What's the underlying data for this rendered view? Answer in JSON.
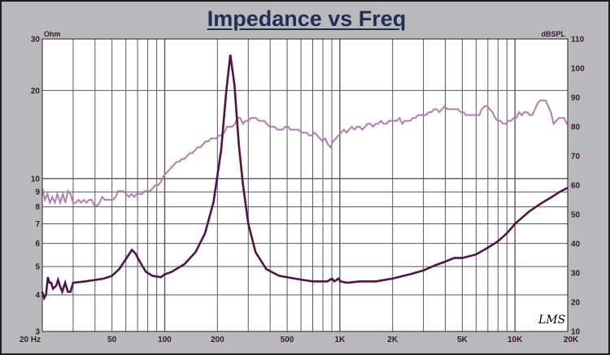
{
  "chart_data": {
    "type": "line",
    "title": "Impedance vs Freq",
    "left_unit": "Ohm",
    "right_unit": "dBSPL",
    "logo_text": "LMS",
    "x_scale": "log",
    "xlim": [
      20,
      20000
    ],
    "left_ylim": [
      3,
      30
    ],
    "left_scale": "log",
    "right_ylim": [
      10,
      110
    ],
    "grid": true,
    "x_ticks": [
      {
        "value": 20,
        "label": "20  Hz"
      },
      {
        "value": 50,
        "label": "50"
      },
      {
        "value": 100,
        "label": "100"
      },
      {
        "value": 200,
        "label": "200"
      },
      {
        "value": 500,
        "label": "500"
      },
      {
        "value": 1000,
        "label": "1K"
      },
      {
        "value": 2000,
        "label": "2K"
      },
      {
        "value": 5000,
        "label": "5K"
      },
      {
        "value": 10000,
        "label": "10K"
      },
      {
        "value": 20000,
        "label": "20K"
      }
    ],
    "left_ticks": [
      {
        "value": 3,
        "label": "3"
      },
      {
        "value": 4,
        "label": "4"
      },
      {
        "value": 5,
        "label": "5"
      },
      {
        "value": 6,
        "label": "6"
      },
      {
        "value": 7,
        "label": "7"
      },
      {
        "value": 8,
        "label": "8"
      },
      {
        "value": 9,
        "label": "9"
      },
      {
        "value": 10,
        "label": "10"
      },
      {
        "value": 20,
        "label": "20"
      },
      {
        "value": 30,
        "label": "30"
      }
    ],
    "right_ticks": [
      10,
      20,
      30,
      40,
      50,
      60,
      70,
      80,
      90,
      100,
      110
    ],
    "colors": {
      "background": "#b9b9bc",
      "grid": "#58585f",
      "impedance": "#52124a",
      "spl": "#b47cb3",
      "tick_text": "#3a1535",
      "title": "#1f2f55"
    },
    "series": [
      {
        "axis": "left",
        "color": "#52124a",
        "points": [
          [
            20,
            4.1
          ],
          [
            20.5,
            3.9
          ],
          [
            21,
            4.0
          ],
          [
            21.5,
            4.6
          ],
          [
            22,
            4.4
          ],
          [
            22.5,
            4.4
          ],
          [
            23,
            4.2
          ],
          [
            24,
            4.3
          ],
          [
            24.6,
            4.5
          ],
          [
            25.2,
            4.3
          ],
          [
            26,
            4.1
          ],
          [
            27,
            4.4
          ],
          [
            28,
            4.1
          ],
          [
            29,
            4.1
          ],
          [
            30,
            4.4
          ],
          [
            35,
            4.45
          ],
          [
            40,
            4.5
          ],
          [
            45,
            4.55
          ],
          [
            50,
            4.65
          ],
          [
            55,
            4.9
          ],
          [
            60,
            5.3
          ],
          [
            65,
            5.7
          ],
          [
            68,
            5.55
          ],
          [
            72,
            5.2
          ],
          [
            78,
            4.8
          ],
          [
            85,
            4.65
          ],
          [
            95,
            4.6
          ],
          [
            100,
            4.7
          ],
          [
            110,
            4.8
          ],
          [
            130,
            5.1
          ],
          [
            150,
            5.6
          ],
          [
            170,
            6.5
          ],
          [
            190,
            8.3
          ],
          [
            210,
            12.5
          ],
          [
            225,
            20
          ],
          [
            237,
            26.5
          ],
          [
            250,
            21
          ],
          [
            265,
            13
          ],
          [
            280,
            9.5
          ],
          [
            300,
            7.0
          ],
          [
            330,
            5.6
          ],
          [
            380,
            4.9
          ],
          [
            450,
            4.65
          ],
          [
            550,
            4.55
          ],
          [
            700,
            4.45
          ],
          [
            850,
            4.45
          ],
          [
            900,
            4.55
          ],
          [
            930,
            4.45
          ],
          [
            980,
            4.55
          ],
          [
            1010,
            4.45
          ],
          [
            1100,
            4.4
          ],
          [
            1300,
            4.45
          ],
          [
            1600,
            4.45
          ],
          [
            2000,
            4.55
          ],
          [
            2500,
            4.7
          ],
          [
            3000,
            4.85
          ],
          [
            3500,
            5.05
          ],
          [
            4000,
            5.2
          ],
          [
            4500,
            5.35
          ],
          [
            5000,
            5.35
          ],
          [
            6000,
            5.5
          ],
          [
            7000,
            5.8
          ],
          [
            8000,
            6.1
          ],
          [
            9000,
            6.5
          ],
          [
            10000,
            7.0
          ],
          [
            12000,
            7.7
          ],
          [
            14000,
            8.2
          ],
          [
            16000,
            8.6
          ],
          [
            18000,
            9.0
          ],
          [
            20000,
            9.3
          ]
        ]
      },
      {
        "axis": "right",
        "color": "#b47cb3",
        "points": [
          [
            20,
            59
          ],
          [
            20.7,
            55
          ],
          [
            21.4,
            57
          ],
          [
            22.1,
            54
          ],
          [
            22.8,
            56
          ],
          [
            23.6,
            54
          ],
          [
            24.4,
            57
          ],
          [
            25.3,
            54
          ],
          [
            26.2,
            57
          ],
          [
            27.1,
            54
          ],
          [
            28.0,
            58
          ],
          [
            29.0,
            57
          ],
          [
            30.0,
            54
          ],
          [
            31.1,
            54
          ],
          [
            32.2,
            55
          ],
          [
            33.3,
            54
          ],
          [
            34.5,
            55
          ],
          [
            35.7,
            54
          ],
          [
            37.0,
            55
          ],
          [
            38.3,
            55
          ],
          [
            39.7,
            53
          ],
          [
            41.1,
            53
          ],
          [
            42.5,
            54
          ],
          [
            44.0,
            56
          ],
          [
            45.6,
            55
          ],
          [
            47.2,
            55
          ],
          [
            48.9,
            55
          ],
          [
            50.6,
            55
          ],
          [
            52.4,
            56
          ],
          [
            54.2,
            58
          ],
          [
            56.2,
            58
          ],
          [
            58.2,
            58
          ],
          [
            60.2,
            57
          ],
          [
            62.4,
            56
          ],
          [
            64.6,
            57
          ],
          [
            66.9,
            56
          ],
          [
            69.2,
            57
          ],
          [
            71.7,
            57
          ],
          [
            74.3,
            57
          ],
          [
            76.9,
            58
          ],
          [
            79.6,
            58
          ],
          [
            82.4,
            58
          ],
          [
            85.4,
            59
          ],
          [
            88.4,
            60
          ],
          [
            91.5,
            60
          ],
          [
            94.8,
            61
          ],
          [
            98.1,
            63
          ],
          [
            101.6,
            64
          ],
          [
            105.2,
            65
          ],
          [
            108.9,
            66
          ],
          [
            112.8,
            67
          ],
          [
            116.8,
            68
          ],
          [
            120.9,
            68
          ],
          [
            125.2,
            69
          ],
          [
            129.7,
            69
          ],
          [
            134.3,
            70
          ],
          [
            139.1,
            71
          ],
          [
            144.0,
            71
          ],
          [
            149.1,
            72
          ],
          [
            154.4,
            73
          ],
          [
            159.9,
            73
          ],
          [
            165.6,
            74
          ],
          [
            171.5,
            75
          ],
          [
            177.5,
            75
          ],
          [
            183.8,
            76
          ],
          [
            190.4,
            76
          ],
          [
            197.1,
            76
          ],
          [
            204.1,
            77
          ],
          [
            211.4,
            77
          ],
          [
            218.9,
            78
          ],
          [
            226.7,
            80
          ],
          [
            234.7,
            80
          ],
          [
            243.0,
            80
          ],
          [
            251.7,
            81
          ],
          [
            260.6,
            83
          ],
          [
            269.9,
            83
          ],
          [
            279.5,
            81
          ],
          [
            289.4,
            82
          ],
          [
            299.7,
            82
          ],
          [
            310.3,
            83
          ],
          [
            321.4,
            83
          ],
          [
            332.8,
            83
          ],
          [
            344.6,
            82
          ],
          [
            356.8,
            82
          ],
          [
            369.5,
            82
          ],
          [
            382.6,
            81
          ],
          [
            396.2,
            80
          ],
          [
            410.3,
            80
          ],
          [
            424.9,
            80
          ],
          [
            440.0,
            79
          ],
          [
            455.6,
            79
          ],
          [
            471.8,
            79
          ],
          [
            488.5,
            80
          ],
          [
            505.9,
            80
          ],
          [
            523.8,
            79
          ],
          [
            542.4,
            79
          ],
          [
            561.7,
            79
          ],
          [
            581.7,
            79
          ],
          [
            602.3,
            78
          ],
          [
            623.7,
            78
          ],
          [
            645.9,
            78
          ],
          [
            668.8,
            77
          ],
          [
            692.6,
            77
          ],
          [
            717.2,
            78
          ],
          [
            742.6,
            77
          ],
          [
            769.0,
            76
          ],
          [
            796.3,
            75
          ],
          [
            824.6,
            76
          ],
          [
            853.9,
            74
          ],
          [
            884.2,
            73
          ],
          [
            915.6,
            75
          ],
          [
            948.1,
            76
          ],
          [
            981.8,
            77
          ],
          [
            1016.7,
            78
          ],
          [
            1052.8,
            79
          ],
          [
            1090.2,
            78
          ],
          [
            1128.9,
            79
          ],
          [
            1169.0,
            80
          ],
          [
            1210.6,
            79
          ],
          [
            1253.6,
            80
          ],
          [
            1298.1,
            80
          ],
          [
            1344.2,
            79
          ],
          [
            1392.0,
            80
          ],
          [
            1441.4,
            81
          ],
          [
            1492.6,
            81
          ],
          [
            1545.6,
            80
          ],
          [
            1600.5,
            81
          ],
          [
            1657.4,
            81
          ],
          [
            1716.3,
            82
          ],
          [
            1777.2,
            81
          ],
          [
            1840.4,
            81
          ],
          [
            1905.8,
            82
          ],
          [
            1973.5,
            82
          ],
          [
            2043.6,
            82
          ],
          [
            2116.2,
            82
          ],
          [
            2191.4,
            83
          ],
          [
            2269.2,
            81
          ],
          [
            2349.8,
            82
          ],
          [
            2433.3,
            82
          ],
          [
            2519.8,
            82
          ],
          [
            2609.3,
            83
          ],
          [
            2702.0,
            83
          ],
          [
            2798.0,
            84
          ],
          [
            2897.4,
            84
          ],
          [
            3000.3,
            84
          ],
          [
            3106.9,
            84
          ],
          [
            3217.3,
            85
          ],
          [
            3331.6,
            85
          ],
          [
            3449.9,
            86
          ],
          [
            3572.5,
            86
          ],
          [
            3699.4,
            85
          ],
          [
            3830.8,
            86
          ],
          [
            3966.9,
            87
          ],
          [
            4107.9,
            86
          ],
          [
            4253.8,
            86
          ],
          [
            4404.9,
            86
          ],
          [
            4561.4,
            86
          ],
          [
            4723.5,
            86
          ],
          [
            4891.3,
            85
          ],
          [
            5065.1,
            85
          ],
          [
            5245.0,
            84
          ],
          [
            5431.4,
            84
          ],
          [
            5624.3,
            84
          ],
          [
            5824.1,
            84
          ],
          [
            6031.0,
            84
          ],
          [
            6245.3,
            84
          ],
          [
            6467.2,
            86
          ],
          [
            6696.9,
            87
          ],
          [
            6934.8,
            87
          ],
          [
            7181.2,
            86
          ],
          [
            7436.3,
            85
          ],
          [
            7700.5,
            83
          ],
          [
            7974.1,
            82
          ],
          [
            8257.4,
            82
          ],
          [
            8550.7,
            81
          ],
          [
            8854.5,
            81
          ],
          [
            9169.1,
            82
          ],
          [
            9494.8,
            82
          ],
          [
            9832.1,
            83
          ],
          [
            10181.4,
            83
          ],
          [
            10543.2,
            85
          ],
          [
            10917.7,
            84
          ],
          [
            11305.6,
            85
          ],
          [
            11707.3,
            85
          ],
          [
            12123.2,
            84
          ],
          [
            12553.9,
            84
          ],
          [
            12999.9,
            86
          ],
          [
            13461.7,
            88
          ],
          [
            13940.0,
            89
          ],
          [
            14435.2,
            89
          ],
          [
            14948.1,
            89
          ],
          [
            15479.1,
            87
          ],
          [
            16029.1,
            85
          ],
          [
            16598.5,
            81
          ],
          [
            17188.2,
            82
          ],
          [
            17798.8,
            83
          ],
          [
            18431.2,
            83
          ],
          [
            19086.0,
            83
          ],
          [
            19764.0,
            81
          ],
          [
            20000,
            81
          ]
        ]
      }
    ]
  }
}
